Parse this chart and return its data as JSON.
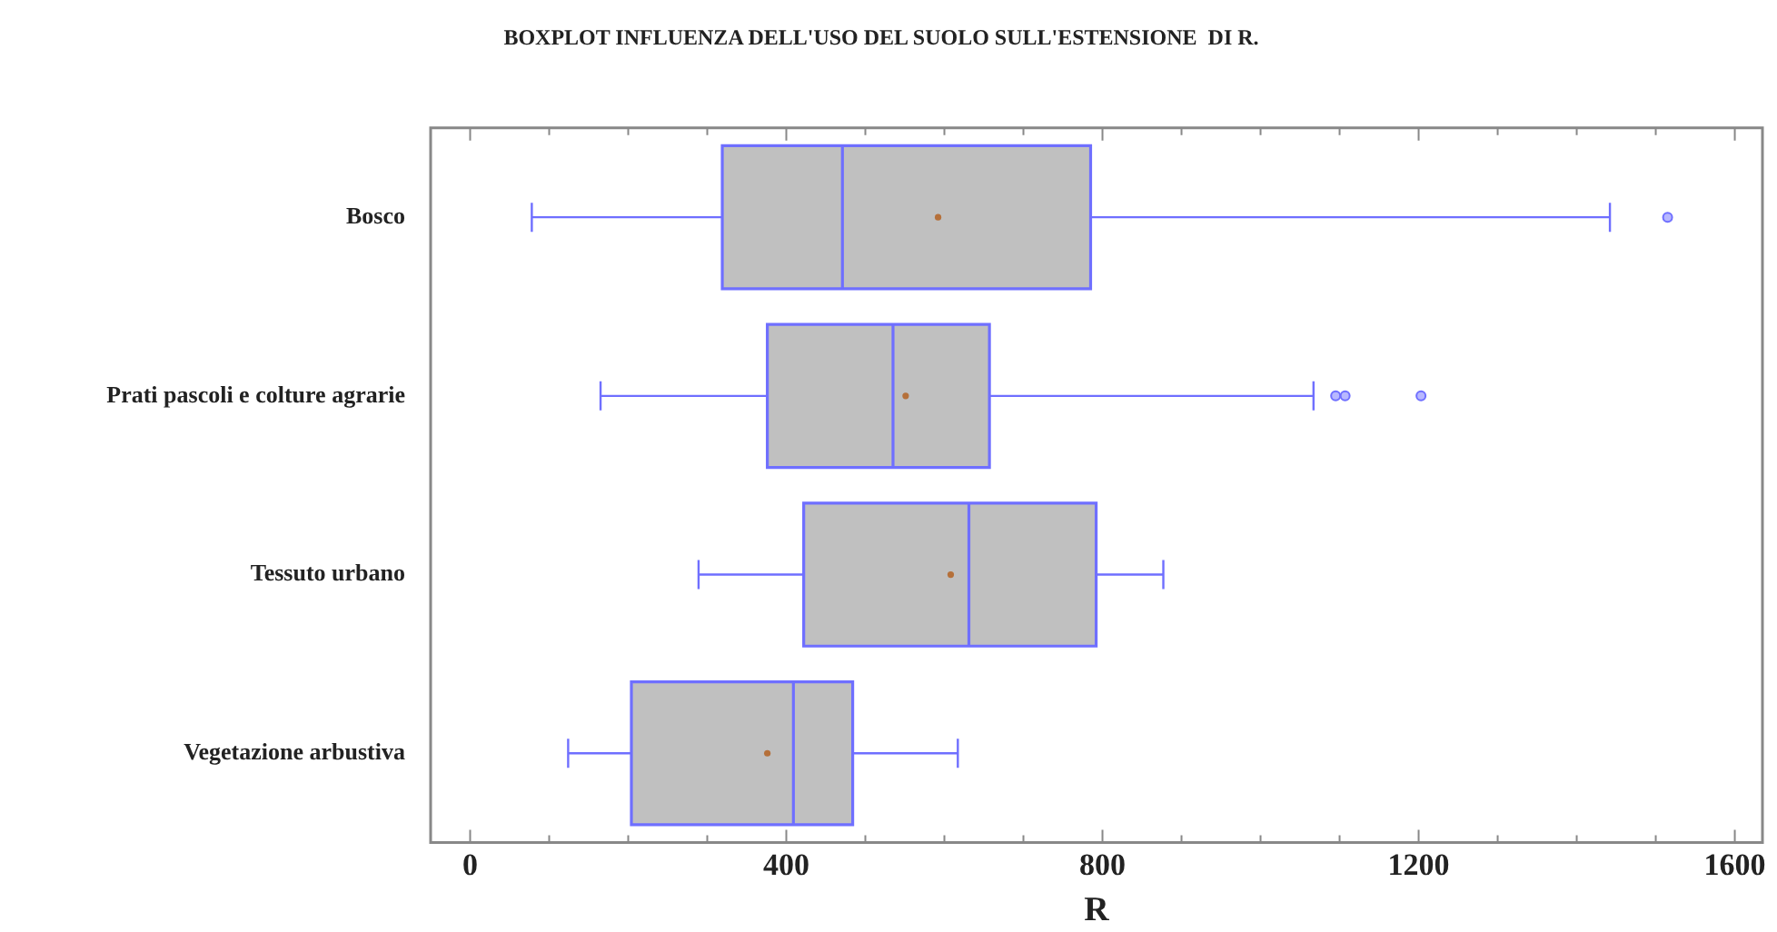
{
  "chart_data": {
    "type": "box",
    "orientation": "horizontal",
    "title": "BOXPLOT INFLUENZA DELL'USO DEL SUOLO SULL'ESTENSIONE  DI R.",
    "xlabel": "R",
    "categories": [
      "Bosco",
      "Prati pascoli e colture agrarie",
      "Tessuto urbano",
      "Vegetazione arbustiva"
    ],
    "color": "#c0c0c0",
    "boxes": [
      {
        "low": 78,
        "q1": 319,
        "median": 471,
        "q3": 785,
        "high": 1442,
        "mean": 592,
        "outliers": [
          1515
        ]
      },
      {
        "low": 165,
        "q1": 376,
        "median": 535,
        "q3": 657,
        "high": 1067,
        "mean": 551,
        "outliers": [
          1095,
          1107,
          1203
        ]
      },
      {
        "low": 289,
        "q1": 422,
        "median": 631,
        "q3": 792,
        "high": 877,
        "mean": 608
      },
      {
        "low": 124,
        "q1": 204,
        "median": 409,
        "q3": 484,
        "high": 617,
        "mean": 376
      }
    ],
    "xlim": [
      -50,
      1635
    ],
    "xticks": [
      0,
      {
        "value": 100,
        "label": null
      },
      {
        "value": 200,
        "label": null
      },
      {
        "value": 300,
        "label": null
      },
      400,
      {
        "value": 500,
        "label": null
      },
      {
        "value": 600,
        "label": null
      },
      {
        "value": 700,
        "label": null
      },
      800,
      {
        "value": 900,
        "label": null
      },
      {
        "value": 1000,
        "label": null
      },
      {
        "value": 1100,
        "label": null
      },
      1200,
      {
        "value": 1300,
        "label": null
      },
      {
        "value": 1400,
        "label": null
      },
      {
        "value": 1500,
        "label": null
      },
      1600
    ],
    "grid": false,
    "legend": false,
    "marker": "circle"
  }
}
